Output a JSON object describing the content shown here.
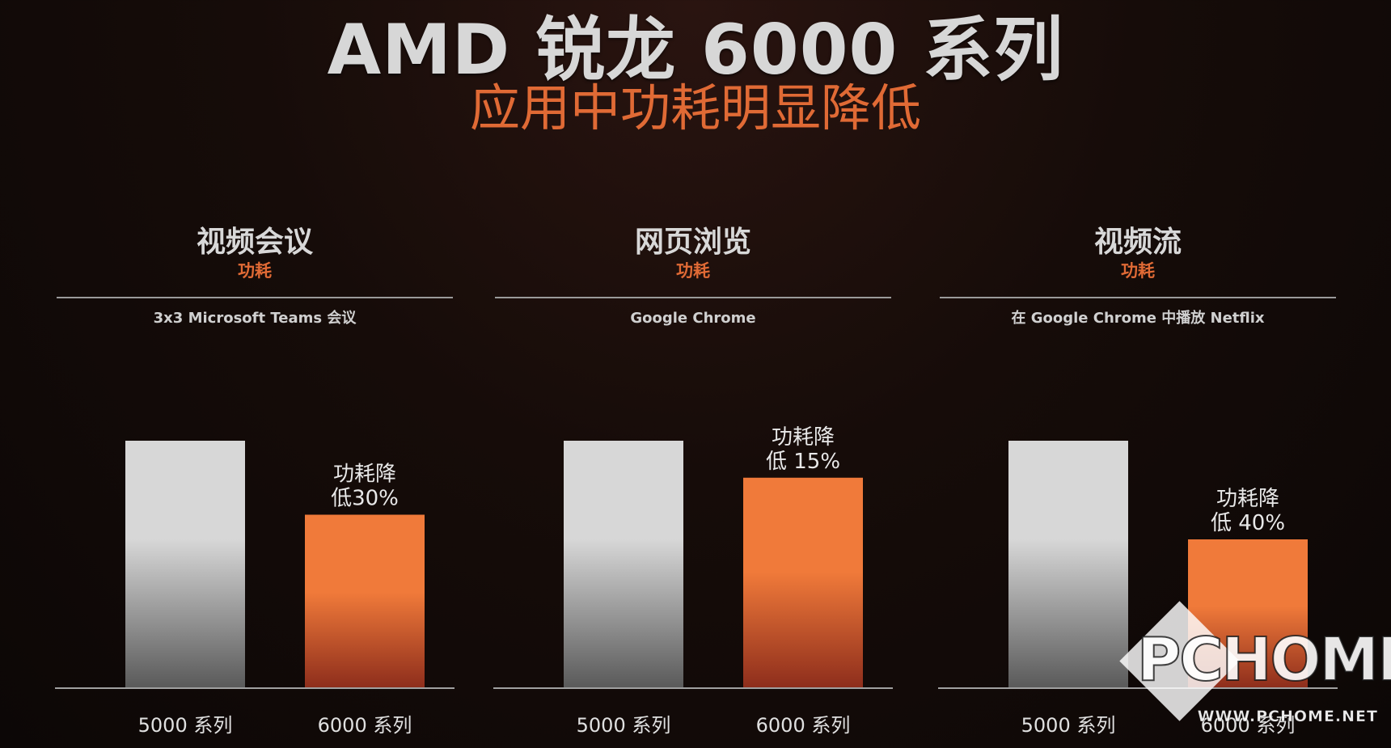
{
  "header": {
    "title": "AMD 锐龙 6000 系列",
    "subtitle": "应用中功耗明显降低"
  },
  "colors": {
    "accent": "#e06a35",
    "bar_old": "#d7d7d7",
    "bar_new": "#f07a3a"
  },
  "chart_data": [
    {
      "type": "bar",
      "title": "视频会议",
      "subtitle": "功耗",
      "app": "3x3 Microsoft Teams 会议",
      "categories": [
        "5000 系列",
        "6000 系列"
      ],
      "values": [
        100,
        70
      ],
      "ylim": [
        0,
        100
      ],
      "annotation_lines": [
        "功耗降",
        "低30%"
      ]
    },
    {
      "type": "bar",
      "title": "网页浏览",
      "subtitle": "功耗",
      "app": "Google Chrome",
      "categories": [
        "5000 系列",
        "6000 系列"
      ],
      "values": [
        100,
        85
      ],
      "ylim": [
        0,
        100
      ],
      "annotation_lines": [
        "功耗降",
        "低 15%"
      ]
    },
    {
      "type": "bar",
      "title": "视频流",
      "subtitle": "功耗",
      "app": "在 Google Chrome 中播放 Netflix",
      "categories": [
        "5000 系列",
        "6000 系列"
      ],
      "values": [
        100,
        60
      ],
      "ylim": [
        0,
        100
      ],
      "annotation_lines": [
        "功耗降",
        "低 40%"
      ]
    }
  ],
  "watermark": {
    "logo_text": "PCHOME",
    "url": "WWW.PCHOME.NET"
  }
}
